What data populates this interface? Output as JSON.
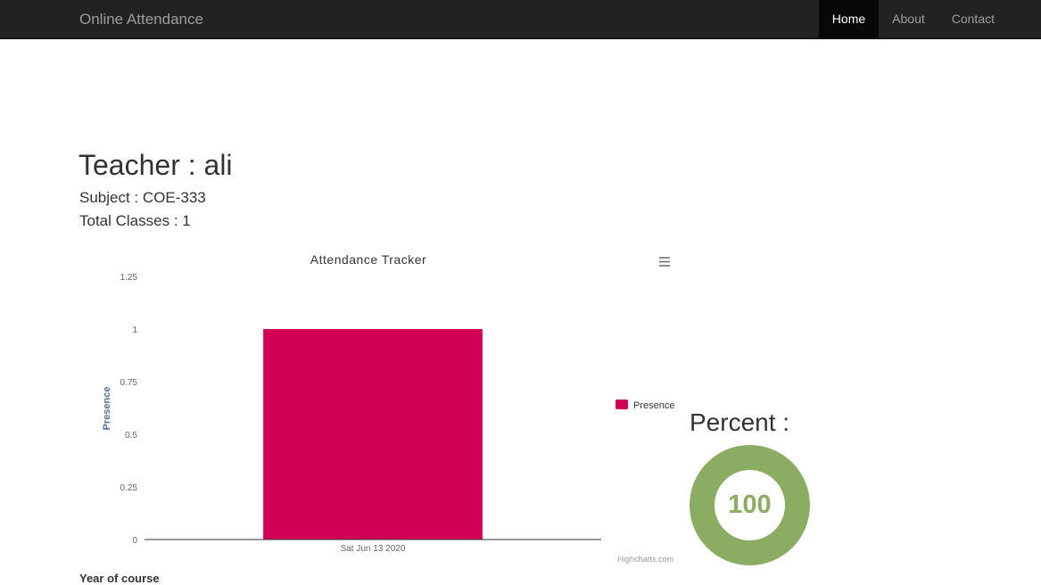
{
  "navbar": {
    "brand": "Online Attendance",
    "items": [
      {
        "label": "Home",
        "active": true
      },
      {
        "label": "About",
        "active": false
      },
      {
        "label": "Contact",
        "active": false
      }
    ]
  },
  "heading": {
    "teacher": "Teacher : ali",
    "subject": "Subject : COE-333",
    "total_classes": "Total Classes : 1"
  },
  "percent": {
    "label": "Percent :",
    "value": "100",
    "color": "#8aac63"
  },
  "footer": {
    "year_label": "Year of course"
  },
  "chart_menu_icon": "hamburger-menu-icon",
  "chart_data": {
    "type": "bar",
    "title": "Attendance Tracker",
    "ylabel": "Presence",
    "xlabel": "",
    "categories": [
      "Sat Jun 13 2020"
    ],
    "series": [
      {
        "name": "Presence",
        "values": [
          1
        ],
        "color": "#d10056"
      }
    ],
    "ylim": [
      0,
      1.25
    ],
    "yticks": [
      "0",
      "0.25",
      "0.5",
      "0.75",
      "1",
      "1.25"
    ],
    "legend_position": "right",
    "credits": "Highcharts.com"
  }
}
